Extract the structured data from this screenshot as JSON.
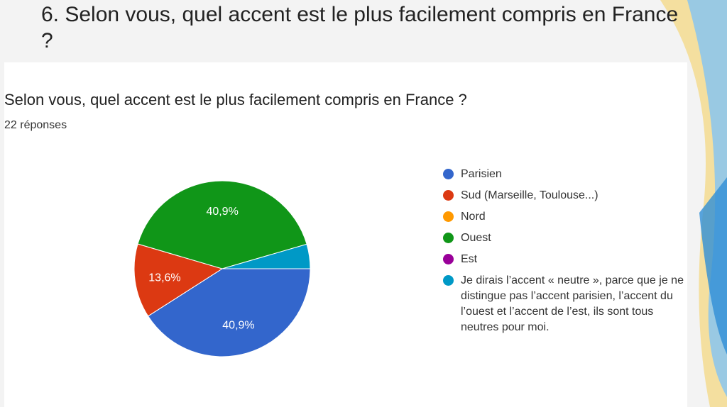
{
  "slide": {
    "title": "6. Selon vous, quel accent est le plus facilement compris en France ?"
  },
  "chart_data": {
    "type": "pie",
    "title": "Selon vous, quel accent est le plus facilement compris en France ?",
    "subtitle": "22 réponses",
    "categories": [
      "Parisien",
      "Sud (Marseille, Toulouse...)",
      "Nord",
      "Ouest",
      "Est",
      "Je dirais l’accent « neutre », parce que je ne distingue pas l’accent parisien, l’accent du l’ouest et l’accent de l’est, ils sont tous neutres pour moi."
    ],
    "values": [
      40.9,
      13.6,
      0,
      40.9,
      0,
      4.5
    ],
    "data_labels": [
      "40,9%",
      "13,6%",
      "",
      "40,9%",
      "",
      ""
    ],
    "colors": [
      "#3366cc",
      "#dc3912",
      "#ff9900",
      "#109618",
      "#990099",
      "#0099c6"
    ],
    "legend_position": "right"
  }
}
